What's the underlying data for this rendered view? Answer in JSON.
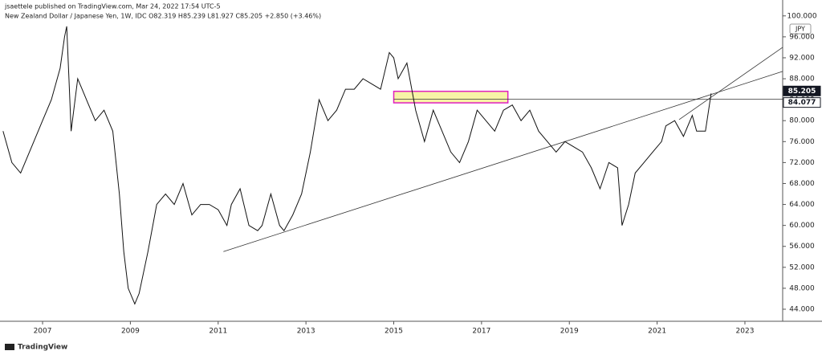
{
  "header": {
    "publisher": "jsaettele published on TradingView.com, Mar 24, 2022 17:54 UTC-5",
    "symbol": "New Zealand Dollar / Japanese Yen, 1W, IDC  O82.319  H85.239  L81.927  C85.205  +2.850 (+3.46%)",
    "currency": "JPY"
  },
  "footer": {
    "brand": "TradingView"
  },
  "chart_data": {
    "type": "line",
    "color": "#111111",
    "x": [
      2006.1,
      2006.3,
      2006.5,
      2006.8,
      2007.0,
      2007.2,
      2007.4,
      2007.5,
      2007.55,
      2007.6,
      2007.65,
      2007.8,
      2007.9,
      2008.0,
      2008.2,
      2008.4,
      2008.6,
      2008.75,
      2008.85,
      2008.95,
      2009.1,
      2009.2,
      2009.4,
      2009.6,
      2009.8,
      2010.0,
      2010.2,
      2010.4,
      2010.6,
      2010.8,
      2011.0,
      2011.2,
      2011.3,
      2011.5,
      2011.7,
      2011.9,
      2012.0,
      2012.2,
      2012.4,
      2012.5,
      2012.7,
      2012.9,
      2013.1,
      2013.3,
      2013.5,
      2013.7,
      2013.9,
      2014.1,
      2014.3,
      2014.5,
      2014.7,
      2014.9,
      2015.0,
      2015.1,
      2015.3,
      2015.5,
      2015.7,
      2015.9,
      2016.1,
      2016.3,
      2016.5,
      2016.7,
      2016.9,
      2017.1,
      2017.3,
      2017.5,
      2017.7,
      2017.9,
      2018.1,
      2018.3,
      2018.5,
      2018.7,
      2018.9,
      2019.1,
      2019.3,
      2019.5,
      2019.7,
      2019.9,
      2020.1,
      2020.2,
      2020.35,
      2020.5,
      2020.7,
      2020.9,
      2021.1,
      2021.2,
      2021.4,
      2021.6,
      2021.8,
      2021.9,
      2022.1,
      2022.23
    ],
    "values": [
      78,
      72,
      70,
      76,
      80,
      84,
      90,
      96,
      98,
      88,
      78,
      88,
      86,
      84,
      80,
      82,
      78,
      66,
      55,
      48,
      45,
      47,
      55,
      64,
      66,
      64,
      68,
      62,
      64,
      64,
      63,
      60,
      64,
      67,
      60,
      59,
      60,
      66,
      60,
      59,
      62,
      66,
      74,
      84,
      80,
      82,
      86,
      86,
      88,
      87,
      86,
      93,
      92,
      88,
      91,
      82,
      76,
      82,
      78,
      74,
      72,
      76,
      82,
      80,
      78,
      82,
      83,
      80,
      82,
      78,
      76,
      74,
      76,
      75,
      74,
      71,
      67,
      72,
      71,
      60,
      64,
      70,
      72,
      74,
      76,
      79,
      80,
      77,
      81,
      78,
      78,
      85.205
    ],
    "xlim": [
      2006.03,
      2023.86
    ],
    "xticks": [
      2007,
      2009,
      2011,
      2013,
      2015,
      2017,
      2019,
      2021,
      2023
    ],
    "ylim": [
      41.7,
      101.5
    ],
    "yticks": [
      {
        "value": 44,
        "label": "44.000"
      },
      {
        "value": 48,
        "label": "48.000"
      },
      {
        "value": 52,
        "label": "52.000"
      },
      {
        "value": 56,
        "label": "56.000"
      },
      {
        "value": 60,
        "label": "60.000"
      },
      {
        "value": 64,
        "label": "64.000"
      },
      {
        "value": 68,
        "label": "68.000"
      },
      {
        "value": 72,
        "label": "72.000"
      },
      {
        "value": 76,
        "label": "76.000"
      },
      {
        "value": 80,
        "label": "80.000"
      },
      {
        "value": 84,
        "label": "84.000"
      },
      {
        "value": 88,
        "label": "88.000"
      },
      {
        "value": 92,
        "label": "92.000"
      },
      {
        "value": 96,
        "label": "96.000"
      },
      {
        "value": 100,
        "label": "100.000"
      }
    ],
    "price_labels": [
      {
        "value": 84.077,
        "label": "84.077"
      },
      {
        "value": 85.205,
        "label": "85.205"
      }
    ],
    "trendlines": [
      {
        "x": [
          2011.12,
          2023.86
        ],
        "y": [
          55,
          89.4
        ]
      },
      {
        "x": [
          2021.5,
          2023.86
        ],
        "y": [
          80.2,
          94
        ]
      }
    ],
    "zone": {
      "x": [
        2015.0,
        2017.6
      ],
      "y": [
        83.4,
        85.6
      ]
    }
  }
}
